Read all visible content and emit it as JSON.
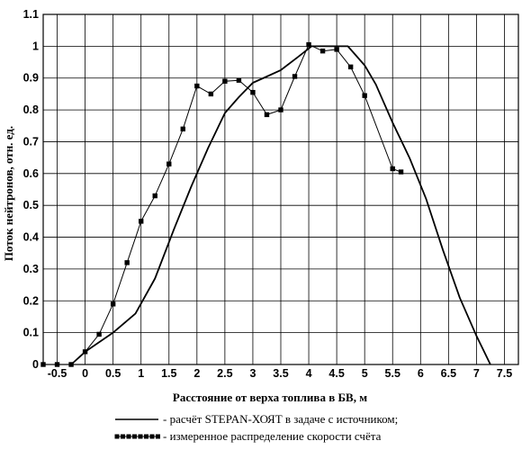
{
  "chart_data": {
    "type": "line",
    "xlabel": "Расстояние от верха топлива в БВ, м",
    "ylabel": "Поток нейтронов, отн. ед.",
    "xlim": [
      -0.75,
      7.75
    ],
    "ylim": [
      0,
      1.1
    ],
    "grid": true,
    "legend_position": "bottom",
    "x_ticks": [
      -0.5,
      0,
      0.5,
      1,
      1.5,
      2,
      2.5,
      3,
      3.5,
      4,
      4.5,
      5,
      5.5,
      6,
      6.5,
      7,
      7.5
    ],
    "x_tick_labels": [
      "-0.5",
      "0",
      "0.5",
      "1",
      "1.5",
      "2",
      "2.5",
      "3",
      "3.5",
      "4",
      "4.5",
      "5",
      "5.5",
      "6",
      "6.5",
      "7",
      "7.5"
    ],
    "y_ticks": [
      0,
      0.1,
      0.2,
      0.3,
      0.4,
      0.5,
      0.6,
      0.7,
      0.8,
      0.9,
      1,
      1.1
    ],
    "y_tick_labels": [
      "0",
      "0.1",
      "0.2",
      "0.3",
      "0.4",
      "0.5",
      "0.6",
      "0.7",
      "0.8",
      "0.9",
      "1",
      "1.1"
    ],
    "series": [
      {
        "name": "- расчёт STEPAN-ХОЯТ в задаче с источником;",
        "style": "line",
        "color": "#000000",
        "x": [
          -0.25,
          0,
          0.5,
          0.9,
          1.25,
          1.6,
          1.9,
          2.2,
          2.5,
          2.75,
          3,
          3.25,
          3.5,
          3.8,
          4.05,
          4.2,
          4.5,
          4.7,
          5.0,
          5.2,
          5.5,
          5.8,
          6.1,
          6.4,
          6.7,
          7.0,
          7.25
        ],
        "y": [
          0,
          0.04,
          0.1,
          0.16,
          0.27,
          0.43,
          0.56,
          0.68,
          0.79,
          0.84,
          0.885,
          0.905,
          0.925,
          0.965,
          1.0,
          1.0,
          1.0,
          1.0,
          0.94,
          0.88,
          0.76,
          0.65,
          0.52,
          0.36,
          0.21,
          0.09,
          0
        ]
      },
      {
        "name": "- измеренное распределение скорости счёта",
        "style": "line-marker",
        "color": "#000000",
        "x": [
          -0.75,
          -0.5,
          -0.25,
          0,
          0.25,
          0.5,
          0.75,
          1.0,
          1.25,
          1.5,
          1.75,
          2.0,
          2.25,
          2.5,
          2.75,
          3.0,
          3.25,
          3.5,
          3.75,
          4.0,
          4.25,
          4.5,
          4.75,
          5.0,
          5.5,
          5.65
        ],
        "y": [
          0,
          0,
          0,
          0.04,
          0.095,
          0.19,
          0.32,
          0.45,
          0.53,
          0.63,
          0.74,
          0.875,
          0.85,
          0.89,
          0.893,
          0.855,
          0.785,
          0.8,
          0.905,
          1.005,
          0.985,
          0.99,
          0.935,
          0.845,
          0.615,
          0.605
        ]
      }
    ]
  }
}
